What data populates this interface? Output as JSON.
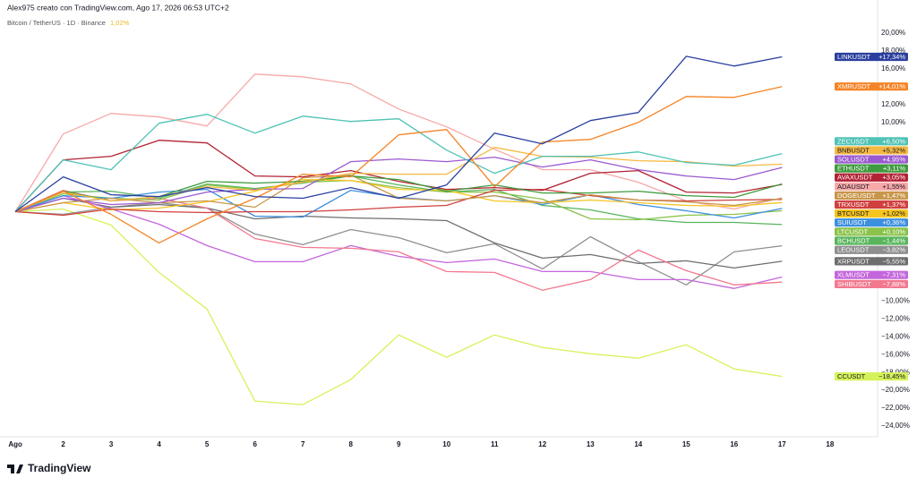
{
  "header": {
    "credit": "Alex975 creato con TradingView.com, Ago 17, 2026 06:53 UTC+2",
    "symbol": "Bitcoin / TetherUS · 1D · Binance",
    "change": "1,02%"
  },
  "footer": {
    "brand": "TradingView"
  },
  "chart_data": {
    "type": "line",
    "grid": false,
    "x": [
      1,
      2,
      3,
      4,
      5,
      6,
      7,
      8,
      9,
      10,
      11,
      12,
      13,
      14,
      15,
      16,
      17
    ],
    "xlim": [
      0.83,
      18.9
    ],
    "xticks": [
      {
        "value": 1,
        "label": "Ago"
      },
      2,
      3,
      4,
      5,
      6,
      7,
      8,
      9,
      10,
      11,
      12,
      13,
      14,
      15,
      16,
      17,
      18
    ],
    "ylim": [
      -25.2,
      23.7
    ],
    "yticks": [
      {
        "value": 20,
        "label": "20,00%"
      },
      {
        "value": 18,
        "label": "18,00%"
      },
      {
        "value": 16,
        "label": "16,00%"
      },
      {
        "value": 14,
        "label": "14,00%"
      },
      {
        "value": 12,
        "label": "12,00%"
      },
      {
        "value": 10,
        "label": "10,00%"
      },
      {
        "value": -10,
        "label": "−10,00%"
      },
      {
        "value": -12,
        "label": "−12,00%"
      },
      {
        "value": -14,
        "label": "−14,00%"
      },
      {
        "value": -16,
        "label": "−16,00%"
      },
      {
        "value": -18,
        "label": "−18,00%"
      },
      {
        "value": -20,
        "label": "−20,00%"
      },
      {
        "value": -22,
        "label": "−22,00%"
      },
      {
        "value": -24,
        "label": "−24,00%"
      }
    ],
    "series": [
      {
        "name": "CCUSDT",
        "color": "#d6f25a",
        "values": [
          0,
          0.3,
          -1.5,
          -6.8,
          -10.9,
          -21.2,
          -21.6,
          -18.8,
          -13.8,
          -16.3,
          -13.8,
          -15.2,
          -15.9,
          -16.4,
          -14.9,
          -17.6,
          -18.45
        ],
        "value_labels": [
          null,
          null,
          null,
          null,
          null,
          null,
          null,
          null,
          null,
          null,
          null,
          null,
          null,
          null,
          null,
          null,
          "−18,45%"
        ]
      },
      {
        "name": "ADAUSDT",
        "color": "#f7a8a8",
        "values": [
          0,
          8.7,
          11.0,
          10.6,
          9.6,
          15.4,
          15.1,
          14.3,
          11.5,
          9.5,
          7.0,
          4.7,
          4.7,
          3.3,
          1.2,
          0.3,
          1.55
        ],
        "value_labels": [
          null,
          null,
          null,
          null,
          null,
          null,
          null,
          null,
          null,
          null,
          null,
          null,
          null,
          null,
          null,
          null,
          "+1,55%"
        ]
      },
      {
        "name": "LEOUSDT",
        "color": "#8f8f8f",
        "values": [
          0,
          -0.3,
          0.5,
          1.0,
          0.4,
          -2.5,
          -3.7,
          -2.0,
          -2.9,
          -4.6,
          -3.6,
          -6.4,
          -2.8,
          -5.6,
          -8.2,
          -4.5,
          -3.82
        ],
        "value_labels": [
          null,
          null,
          null,
          null,
          null,
          null,
          null,
          null,
          null,
          null,
          null,
          null,
          null,
          null,
          null,
          null,
          "−3,82%"
        ]
      },
      {
        "name": "XRPUSDT",
        "color": "#6e6e6e",
        "values": [
          0,
          1.5,
          0.5,
          0.8,
          0.4,
          -0.8,
          -0.5,
          -0.7,
          -0.8,
          -1.0,
          -3.5,
          -5.2,
          -4.8,
          -5.8,
          -5.5,
          -6.3,
          -5.55
        ],
        "value_labels": [
          null,
          null,
          null,
          null,
          null,
          null,
          null,
          null,
          null,
          null,
          null,
          null,
          null,
          null,
          null,
          null,
          "−5,55%"
        ]
      },
      {
        "name": "XLMUSDT",
        "color": "#c466dc",
        "values": [
          0,
          1.8,
          0.3,
          -1.4,
          -3.8,
          -5.6,
          -5.6,
          -3.8,
          -5.0,
          -5.7,
          -5.3,
          -6.7,
          -6.7,
          -7.6,
          -7.6,
          -8.6,
          -7.31
        ],
        "value_labels": [
          null,
          null,
          null,
          null,
          null,
          null,
          null,
          null,
          null,
          null,
          null,
          null,
          null,
          null,
          null,
          null,
          "−7,31%"
        ]
      },
      {
        "name": "SHIBUSDT",
        "color": "#f2788f",
        "values": [
          0,
          2.4,
          1.2,
          1.5,
          0.4,
          -3.0,
          -4.0,
          -4.1,
          -4.5,
          -6.7,
          -6.8,
          -8.8,
          -7.6,
          -4.3,
          -6.6,
          -8.2,
          -7.88
        ],
        "value_labels": [
          null,
          null,
          null,
          null,
          null,
          null,
          null,
          null,
          null,
          null,
          null,
          null,
          null,
          null,
          null,
          null,
          "−7,88%"
        ]
      },
      {
        "name": "BCHUSDT",
        "color": "#58b55c",
        "values": [
          0,
          2.2,
          2.3,
          1.5,
          3.1,
          2.6,
          3.2,
          4.0,
          3.0,
          2.2,
          2.5,
          0.7,
          0.2,
          -0.8,
          -1.2,
          -1.2,
          -1.44
        ],
        "value_labels": [
          null,
          null,
          null,
          null,
          null,
          null,
          null,
          null,
          null,
          null,
          null,
          null,
          null,
          null,
          null,
          null,
          "−1,44%"
        ]
      },
      {
        "name": "LTCUSDT",
        "color": "#8bc34a",
        "values": [
          0,
          2.0,
          1.5,
          1.3,
          3.0,
          2.5,
          3.3,
          3.5,
          2.7,
          2.2,
          2.2,
          1.4,
          -0.8,
          -0.9,
          -0.4,
          -0.3,
          0.1
        ],
        "value_labels": [
          null,
          null,
          null,
          null,
          null,
          null,
          null,
          null,
          null,
          null,
          null,
          null,
          null,
          null,
          null,
          null,
          "+0,10%"
        ]
      },
      {
        "name": "SUIUSDT",
        "color": "#3c8fde",
        "values": [
          0,
          1.8,
          1.5,
          2.2,
          2.5,
          -0.5,
          -0.6,
          2.4,
          1.6,
          1.2,
          1.8,
          0.8,
          1.9,
          0.8,
          0.1,
          -0.7,
          0.36
        ],
        "value_labels": [
          null,
          null,
          null,
          null,
          null,
          null,
          null,
          null,
          null,
          null,
          null,
          null,
          null,
          null,
          null,
          null,
          "+0,36%"
        ]
      },
      {
        "name": "BTCUSDT",
        "color": "#f7c520",
        "values": [
          0,
          1.0,
          0.2,
          0.4,
          1.1,
          2.3,
          3.6,
          3.5,
          2.5,
          2.4,
          1.2,
          1.0,
          1.3,
          1.0,
          0.7,
          0.6,
          1.02
        ],
        "value_labels": [
          null,
          null,
          null,
          null,
          null,
          null,
          null,
          null,
          null,
          null,
          null,
          null,
          null,
          null,
          null,
          null,
          "+1,02%"
        ]
      },
      {
        "name": "TRXUSDT",
        "color": "#d0403e",
        "values": [
          0,
          -0.4,
          0.3,
          0.0,
          -0.1,
          0.0,
          0.0,
          0.2,
          0.5,
          0.7,
          2.4,
          2.5,
          1.8,
          1.3,
          1.2,
          1.3,
          1.37
        ],
        "value_labels": [
          null,
          null,
          null,
          null,
          null,
          null,
          null,
          null,
          null,
          null,
          null,
          null,
          null,
          null,
          null,
          null,
          "+1,37%"
        ]
      },
      {
        "name": "DOGEUSDT",
        "color": "#c8964a",
        "values": [
          0,
          1.0,
          1.5,
          1.0,
          1.2,
          0.5,
          3.8,
          4.1,
          1.5,
          1.2,
          1.8,
          1.0,
          1.9,
          1.3,
          1.1,
          0.7,
          1.47
        ],
        "value_labels": [
          null,
          null,
          null,
          null,
          null,
          null,
          null,
          null,
          null,
          null,
          null,
          null,
          null,
          null,
          null,
          null,
          "+1,47%"
        ]
      },
      {
        "name": "AVAXUSDT",
        "color": "#b22234",
        "values": [
          0,
          5.8,
          6.2,
          8.0,
          7.7,
          4.0,
          3.9,
          4.6,
          3.4,
          2.5,
          2.7,
          2.4,
          4.3,
          4.6,
          2.2,
          2.1,
          3.05
        ],
        "value_labels": [
          null,
          null,
          null,
          null,
          null,
          null,
          null,
          null,
          null,
          null,
          null,
          null,
          null,
          null,
          null,
          null,
          "+3,05%"
        ]
      },
      {
        "name": "ETHUSDT",
        "color": "#3e9b3e",
        "values": [
          0,
          2.3,
          1.2,
          1.7,
          3.4,
          3.2,
          3.4,
          4.0,
          3.6,
          2.3,
          3.0,
          2.1,
          2.1,
          2.3,
          1.8,
          1.6,
          3.11
        ],
        "value_labels": [
          null,
          null,
          null,
          null,
          null,
          null,
          null,
          null,
          null,
          null,
          null,
          null,
          null,
          null,
          null,
          null,
          "+3,11%"
        ]
      },
      {
        "name": "SOLUSDT",
        "color": "#9b59d0",
        "values": [
          0,
          1.5,
          0.8,
          1.0,
          2.2,
          2.5,
          2.6,
          5.6,
          5.9,
          5.6,
          6.1,
          5.0,
          5.8,
          4.7,
          4.0,
          3.6,
          4.95
        ],
        "value_labels": [
          null,
          null,
          null,
          null,
          null,
          null,
          null,
          null,
          null,
          null,
          null,
          null,
          null,
          null,
          null,
          null,
          "+4,95%"
        ]
      },
      {
        "name": "BNBUSDT",
        "color": "#f5b942",
        "values": [
          0,
          2.2,
          1.2,
          1.7,
          2.8,
          2.4,
          3.3,
          4.3,
          4.2,
          4.2,
          7.2,
          6.2,
          6.1,
          5.7,
          5.6,
          5.1,
          5.32
        ],
        "value_labels": [
          null,
          null,
          null,
          null,
          null,
          null,
          null,
          null,
          null,
          null,
          null,
          null,
          null,
          null,
          null,
          null,
          "+5,32%"
        ]
      },
      {
        "name": "ZECUSDT",
        "color": "#4ec2b5",
        "values": [
          0,
          5.8,
          4.7,
          9.9,
          10.9,
          8.8,
          10.7,
          10.1,
          10.4,
          6.9,
          4.3,
          6.2,
          6.2,
          6.7,
          5.5,
          5.2,
          6.5
        ],
        "value_labels": [
          null,
          null,
          null,
          null,
          null,
          null,
          null,
          null,
          null,
          null,
          null,
          null,
          null,
          null,
          null,
          null,
          "+6,50%"
        ]
      },
      {
        "name": "XMRUSDT",
        "color": "#f58426",
        "values": [
          0,
          2.3,
          -0.3,
          -3.5,
          -0.8,
          1.5,
          4.2,
          3.9,
          8.6,
          9.2,
          2.8,
          7.8,
          8.1,
          10.0,
          12.9,
          12.8,
          14.01
        ],
        "value_labels": [
          null,
          null,
          null,
          null,
          null,
          null,
          null,
          null,
          null,
          null,
          null,
          null,
          null,
          null,
          null,
          null,
          "+14,01%"
        ]
      },
      {
        "name": "LINKUSDT",
        "color": "#2a3f9e",
        "values": [
          0,
          3.9,
          1.9,
          1.7,
          2.7,
          1.7,
          1.5,
          2.7,
          1.5,
          3.0,
          8.8,
          7.6,
          10.2,
          11.1,
          17.4,
          16.3,
          17.34
        ],
        "value_labels": [
          null,
          null,
          null,
          null,
          null,
          null,
          null,
          null,
          null,
          null,
          null,
          null,
          null,
          null,
          null,
          null,
          "+17,34%"
        ]
      }
    ]
  }
}
